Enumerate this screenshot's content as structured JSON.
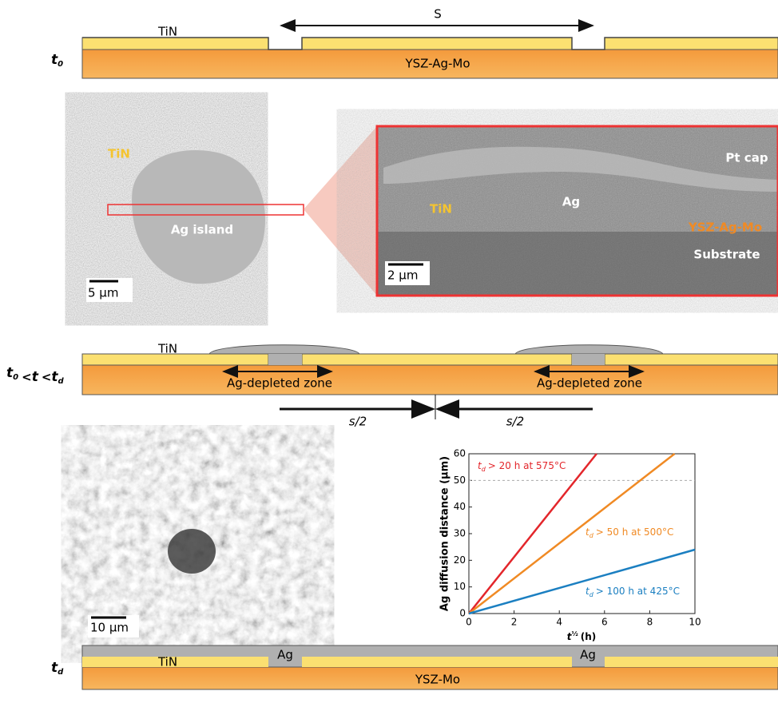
{
  "diagram_t0": {
    "stage": [
      {
        "base": "t",
        "sub": "0"
      }
    ],
    "span_label": "S",
    "top_layer": "TiN",
    "base_layer": "YSZ-Ag-Mo"
  },
  "sem_image": {
    "layer": "TiN",
    "feature": "Ag island",
    "scale_bar": "5 µm"
  },
  "cross_section": {
    "labels": [
      "Pt cap",
      "Ag",
      "TiN",
      "YSZ-Ag-Mo",
      "Substrate"
    ],
    "scale_bar": "2 µm"
  },
  "diagram_t": {
    "stage": [
      {
        "base": "t",
        "sub": "0"
      },
      "<",
      {
        "base": "t"
      },
      "<",
      {
        "base": "t",
        "sub": "d"
      }
    ],
    "top_layer": "TiN",
    "zones": [
      "Ag-depleted zone",
      "Ag-depleted zone"
    ],
    "half_spans": [
      "s/2",
      "s/2"
    ]
  },
  "optical_image": {
    "scale_bar": "10 µm"
  },
  "chart_data": {
    "type": "line",
    "y_label": "Ag diffusion distance (µm)",
    "x_label": {
      "base": "t",
      "sup": "½",
      "text": "(h)"
    },
    "xlim": [
      0,
      10
    ],
    "xticks": [
      0,
      2,
      4,
      6,
      8,
      10
    ],
    "ylim": [
      0,
      60
    ],
    "yticks": [
      0,
      10,
      20,
      30,
      40,
      50,
      60
    ],
    "hline": 50,
    "series": [
      {
        "color": "#e3262b",
        "x": [
          0,
          5.65
        ],
        "values": [
          0,
          60
        ],
        "label": {
          "base": "t",
          "sub": "d",
          "text": "> 20 h at 575°C"
        }
      },
      {
        "color": "#f08a24",
        "x": [
          0,
          9.1
        ],
        "values": [
          0,
          60
        ],
        "label": {
          "base": "t",
          "sub": "d",
          "text": "> 50 h at 500°C"
        }
      },
      {
        "color": "#1b7fc1",
        "x": [
          0,
          10
        ],
        "values": [
          0,
          24
        ],
        "label": {
          "base": "t",
          "sub": "d",
          "text": "> 100 h at 425°C"
        }
      }
    ]
  },
  "diagram_td": {
    "stage": [
      {
        "base": "t",
        "sub": "d"
      }
    ],
    "top_layer": "TiN",
    "islands": [
      "Ag",
      "Ag"
    ],
    "base_layer": "YSZ-Mo"
  }
}
